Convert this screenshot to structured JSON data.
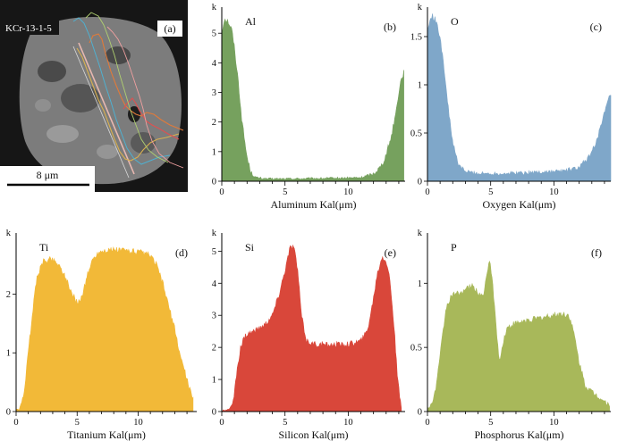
{
  "image_panel": {
    "label": "(a)",
    "sample": "KCr-13-1-5",
    "scale_bar": "8 μm",
    "trace_colors": [
      "#e07a3a",
      "#d8b050",
      "#4fb0d0",
      "#e05050",
      "#f0a0a0",
      "#b0d070"
    ]
  },
  "chart_data": [
    {
      "type": "area",
      "panel_label": "(b)",
      "element": "Al",
      "color": "#76a15e",
      "xlabel": "Aluminum Kal(μm)",
      "ylabel": "",
      "y_unit": "k",
      "xlim": [
        0,
        14.5
      ],
      "ylim": [
        0,
        5.7
      ],
      "xticks": [
        0,
        5,
        10
      ],
      "yticks": [
        0,
        1,
        2,
        3,
        4,
        5
      ],
      "grid": false,
      "x": [
        0,
        0.2,
        0.5,
        0.8,
        1.0,
        1.3,
        1.6,
        2.0,
        2.3,
        2.7,
        3.5,
        5,
        7,
        9,
        11,
        12,
        12.6,
        13.0,
        13.4,
        13.8,
        14.1,
        14.4
      ],
      "y": [
        5.0,
        5.5,
        5.4,
        5.1,
        4.5,
        3.4,
        2.0,
        0.8,
        0.3,
        0.12,
        0.08,
        0.08,
        0.09,
        0.1,
        0.12,
        0.25,
        0.5,
        0.9,
        1.5,
        2.4,
        3.3,
        3.7
      ]
    },
    {
      "type": "area",
      "panel_label": "(c)",
      "element": "O",
      "color": "#7fa7c9",
      "xlabel": "Oxygen Kal(μm)",
      "ylabel": "",
      "y_unit": "k",
      "xlim": [
        0,
        14.5
      ],
      "ylim": [
        0,
        1.75
      ],
      "xticks": [
        0,
        5,
        10
      ],
      "yticks": [
        0,
        0.5,
        1.0,
        1.5
      ],
      "grid": false,
      "x": [
        0,
        0.3,
        0.6,
        1.0,
        1.3,
        1.6,
        2.0,
        2.4,
        3.0,
        4,
        6,
        8,
        10,
        11,
        12,
        12.8,
        13.3,
        13.8,
        14.2,
        14.5
      ],
      "y": [
        1.55,
        1.72,
        1.68,
        1.5,
        1.2,
        0.8,
        0.4,
        0.18,
        0.1,
        0.08,
        0.08,
        0.09,
        0.1,
        0.11,
        0.14,
        0.25,
        0.4,
        0.6,
        0.8,
        0.9
      ]
    },
    {
      "type": "area",
      "panel_label": "(d)",
      "element": "Ti",
      "color": "#f2b938",
      "xlabel": "Titanium Kal(μm)",
      "ylabel": "",
      "y_unit": "k",
      "xlim": [
        0,
        14.8
      ],
      "ylim": [
        0,
        2.95
      ],
      "xticks": [
        0,
        5,
        10
      ],
      "yticks": [
        0,
        1,
        2
      ],
      "grid": false,
      "x": [
        0,
        0.3,
        0.6,
        0.9,
        1.3,
        1.7,
        2.2,
        2.8,
        3.3,
        3.8,
        4.2,
        4.6,
        5.0,
        5.4,
        5.8,
        6.3,
        6.8,
        7.4,
        8.0,
        8.6,
        9.2,
        9.8,
        10.4,
        11.0,
        11.5,
        12.0,
        12.5,
        13.0,
        13.4,
        13.8,
        14.2,
        14.5
      ],
      "y": [
        0.02,
        0.05,
        0.25,
        0.8,
        1.6,
        2.3,
        2.55,
        2.6,
        2.55,
        2.4,
        2.2,
        2.0,
        1.85,
        1.95,
        2.3,
        2.6,
        2.72,
        2.75,
        2.75,
        2.75,
        2.74,
        2.72,
        2.7,
        2.65,
        2.5,
        2.2,
        1.8,
        1.4,
        1.0,
        0.7,
        0.4,
        0.2
      ]
    },
    {
      "type": "area",
      "panel_label": "(e)",
      "element": "Si",
      "color": "#d9473a",
      "xlabel": "Silicon Kal(μm)",
      "ylabel": "",
      "y_unit": "k",
      "xlim": [
        0,
        14.5
      ],
      "ylim": [
        0,
        5.4
      ],
      "xticks": [
        0,
        5,
        10
      ],
      "yticks": [
        0,
        1,
        2,
        3,
        4,
        5
      ],
      "grid": false,
      "x": [
        0,
        0.5,
        0.9,
        1.2,
        1.5,
        1.8,
        2.2,
        2.8,
        3.4,
        4.0,
        4.5,
        5.0,
        5.4,
        5.7,
        6.0,
        6.3,
        6.7,
        7.2,
        8,
        9,
        10,
        11,
        11.5,
        11.9,
        12.3,
        12.7,
        13.0,
        13.3,
        13.6,
        13.9,
        14.2
      ],
      "y": [
        0.02,
        0.05,
        0.3,
        1.2,
        2.0,
        2.35,
        2.45,
        2.55,
        2.7,
        3.0,
        3.6,
        4.4,
        5.1,
        5.15,
        4.4,
        3.0,
        2.2,
        2.1,
        2.08,
        2.08,
        2.1,
        2.2,
        2.5,
        3.3,
        4.3,
        4.85,
        4.7,
        4.1,
        2.8,
        1.0,
        0.1
      ]
    },
    {
      "type": "area",
      "panel_label": "(f)",
      "element": "P",
      "color": "#a8b85a",
      "xlabel": "Phosphorus Kal(μm)",
      "ylabel": "",
      "y_unit": "k",
      "xlim": [
        0,
        14.5
      ],
      "ylim": [
        0,
        1.35
      ],
      "xticks": [
        0,
        5,
        10
      ],
      "yticks": [
        0,
        0.5,
        1.0
      ],
      "grid": false,
      "x": [
        0,
        0.3,
        0.6,
        0.9,
        1.2,
        1.5,
        1.9,
        2.4,
        3.0,
        3.5,
        4.0,
        4.4,
        4.7,
        4.9,
        5.1,
        5.4,
        5.7,
        6.0,
        6.3,
        6.8,
        7.5,
        8.5,
        9.5,
        10.5,
        11.2,
        11.6,
        12.0,
        12.5,
        13.0,
        13.5,
        14.0,
        14.4
      ],
      "y": [
        0.02,
        0.05,
        0.15,
        0.35,
        0.6,
        0.82,
        0.9,
        0.92,
        0.95,
        0.98,
        0.93,
        0.9,
        1.05,
        1.2,
        1.05,
        0.7,
        0.38,
        0.55,
        0.65,
        0.68,
        0.7,
        0.72,
        0.74,
        0.76,
        0.75,
        0.6,
        0.38,
        0.2,
        0.15,
        0.12,
        0.08,
        0.05
      ]
    }
  ]
}
